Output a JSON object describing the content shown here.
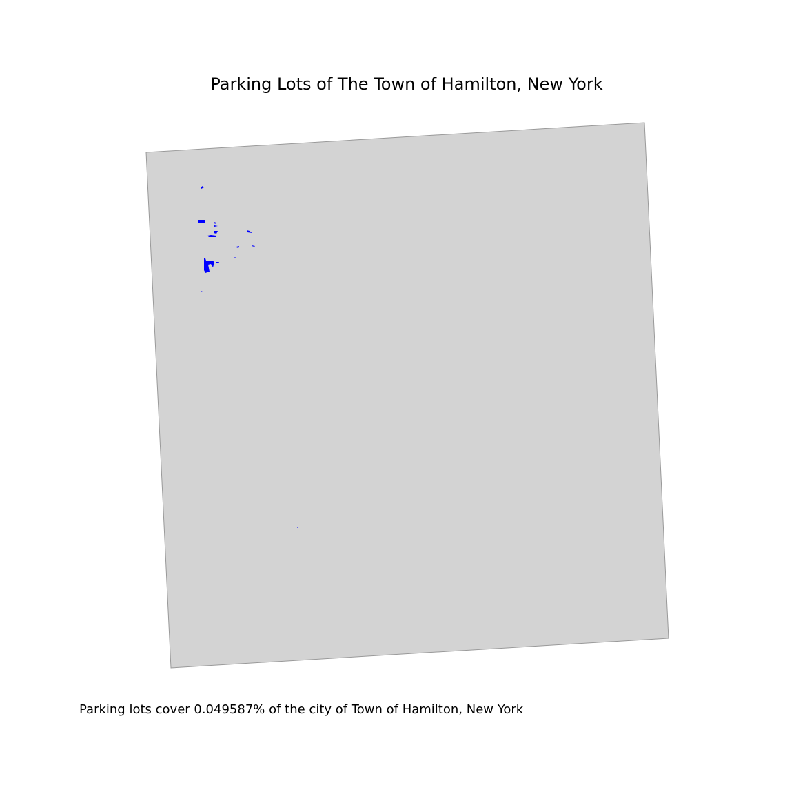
{
  "title": "Parking Lots of The Town of Hamilton, New York",
  "caption": "Parking lots cover 0.049587% of the city of Town of Hamilton, New York",
  "colors": {
    "boundary_fill": "#d3d3d3",
    "boundary_stroke": "#999999",
    "parking_fill": "#0000ff",
    "background": "#ffffff"
  },
  "coverage_percent": 0.049587
}
